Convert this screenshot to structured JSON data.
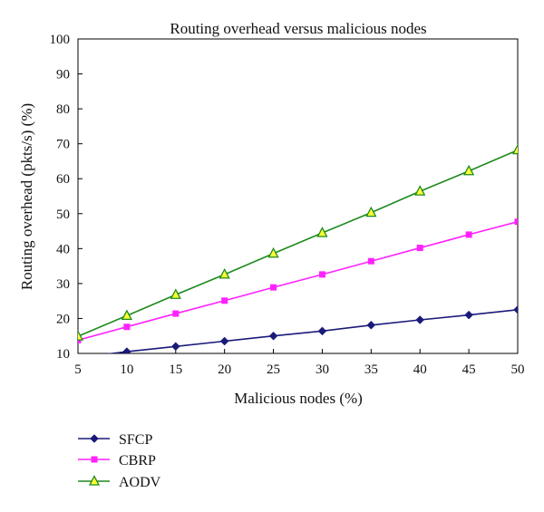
{
  "chart_data": {
    "type": "line",
    "title": "Routing overhead versus malicious nodes",
    "xlabel": "Malicious nodes (%)",
    "ylabel": "Routing overhead (pkts/s) (%)",
    "x": [
      5,
      10,
      15,
      20,
      25,
      30,
      35,
      40,
      45,
      50
    ],
    "xlim": [
      5,
      50
    ],
    "ylim": [
      10,
      100
    ],
    "xticks": [
      "5",
      "10",
      "15",
      "20",
      "25",
      "30",
      "35",
      "40",
      "45",
      "50"
    ],
    "yticks": [
      "10",
      "20",
      "30",
      "40",
      "50",
      "60",
      "70",
      "80",
      "90",
      "100"
    ],
    "grid": false,
    "legend_position": "bottom-left",
    "series": [
      {
        "name": "SFCP",
        "color": "#1a1a7a",
        "marker": "diamond",
        "values": [
          8.8,
          10.5,
          12.0,
          13.5,
          15.0,
          16.4,
          18.1,
          19.6,
          21.0,
          22.5
        ]
      },
      {
        "name": "CBRP",
        "color": "#ff22ff",
        "marker": "square",
        "values": [
          13.8,
          17.6,
          21.4,
          25.1,
          28.9,
          32.6,
          36.4,
          40.2,
          44.0,
          47.7
        ]
      },
      {
        "name": "AODV",
        "color": "#1d8a1d",
        "marker": "triangle",
        "values": [
          14.9,
          20.8,
          26.8,
          32.6,
          38.6,
          44.5,
          50.3,
          56.4,
          62.2,
          68.2
        ]
      }
    ]
  }
}
